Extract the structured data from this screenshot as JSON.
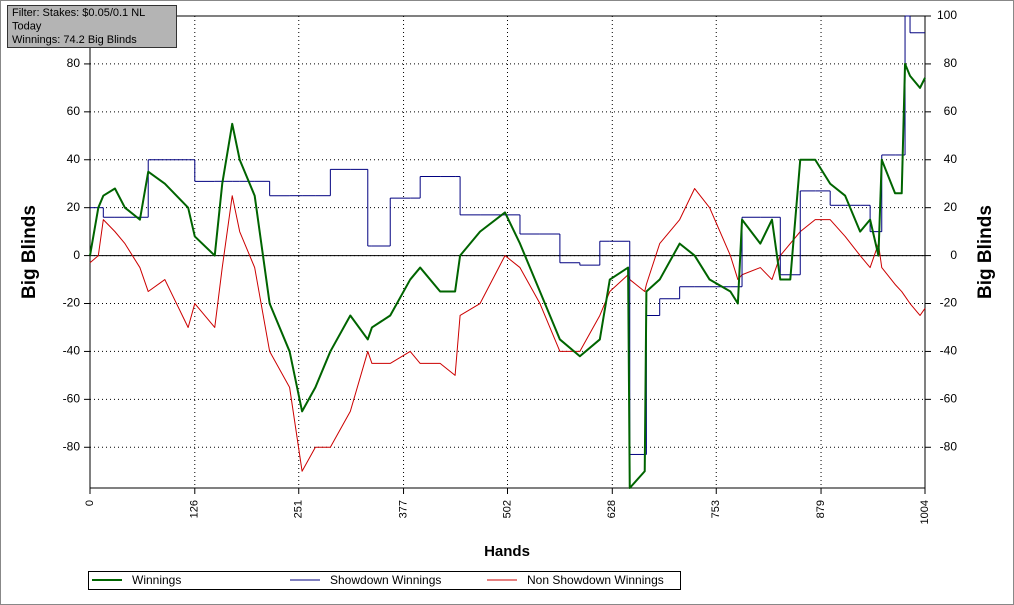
{
  "chart_data": {
    "type": "line",
    "annotations": [
      "Filter: Stakes: $0.05/0.1 NL",
      "Today",
      "Winnings: 74.2 Big Blinds"
    ],
    "xlabel": "Hands",
    "ylabel": "Big Blinds",
    "y2label": "Big Blinds",
    "xlim": [
      0,
      1004
    ],
    "xticks": [
      0,
      126,
      251,
      377,
      502,
      628,
      753,
      879,
      1004
    ],
    "ylim": [
      -97,
      100
    ],
    "yticks": [
      -80,
      -60,
      -40,
      -20,
      0,
      20,
      40,
      60,
      80
    ],
    "y2lim": [
      -97,
      100
    ],
    "y2ticks": [
      -80,
      -60,
      -40,
      -20,
      0,
      20,
      40,
      60,
      80,
      100
    ],
    "grid": true,
    "legend": "bottom",
    "x": [
      0,
      10,
      16,
      30,
      42,
      60,
      70,
      90,
      118,
      126,
      150,
      159,
      171,
      180,
      198,
      216,
      240,
      255,
      271,
      289,
      313,
      334,
      339,
      361,
      385,
      397,
      421,
      439,
      445,
      469,
      499,
      517,
      541,
      565,
      589,
      613,
      625,
      647,
      649,
      667,
      669,
      685,
      709,
      727,
      745,
      770,
      779,
      784,
      806,
      820,
      830,
      842,
      854,
      872,
      890,
      908,
      926,
      938,
      948,
      952,
      968,
      976,
      980,
      986,
      998,
      1004
    ],
    "series": [
      {
        "name": "Winnings",
        "color": "#006400",
        "width": 2,
        "values": [
          0,
          20,
          25,
          28,
          20,
          15,
          35,
          30,
          20,
          8,
          0,
          30,
          55,
          40,
          25,
          -20,
          -40,
          -65,
          -55,
          -40,
          -25,
          -35,
          -30,
          -25,
          -10,
          -5,
          -15,
          -15,
          0,
          10,
          18,
          5,
          -15,
          -35,
          -42,
          -35,
          -10,
          -5,
          -97,
          -90,
          -15,
          -10,
          5,
          0,
          -10,
          -15,
          -20,
          15,
          5,
          15,
          -10,
          -10,
          40,
          40,
          30,
          25,
          10,
          15,
          0,
          40,
          26,
          26,
          80,
          75,
          70,
          74.2
        ]
      },
      {
        "name": "Showdown Winnings",
        "color": "#000080",
        "width": 1,
        "step": true,
        "values": [
          20,
          20,
          16,
          16,
          16,
          16,
          40,
          40,
          40,
          31,
          31,
          31,
          31,
          31,
          31,
          25,
          25,
          25,
          25,
          36,
          36,
          4,
          4,
          24,
          24,
          33,
          33,
          33,
          17,
          17,
          17,
          9,
          9,
          -3,
          -4,
          6,
          6,
          6,
          -83,
          -83,
          -25,
          -18,
          -13,
          -13,
          -13,
          -13,
          -13,
          16,
          16,
          16,
          -8,
          -8,
          27,
          27,
          21,
          21,
          21,
          10,
          10,
          42,
          42,
          42,
          100,
          93,
          93,
          93
        ]
      },
      {
        "name": "Non Showdown Winnings",
        "color": "#cc0000",
        "width": 1,
        "values": [
          -3,
          0,
          15,
          10,
          5,
          -5,
          -15,
          -10,
          -30,
          -20,
          -30,
          -5,
          25,
          10,
          -5,
          -40,
          -55,
          -90,
          -80,
          -80,
          -65,
          -40,
          -45,
          -45,
          -40,
          -45,
          -45,
          -50,
          -25,
          -20,
          0,
          -5,
          -20,
          -40,
          -40,
          -25,
          -15,
          -8,
          -10,
          -15,
          -12,
          5,
          15,
          28,
          20,
          0,
          -10,
          -8,
          -5,
          -10,
          0,
          5,
          10,
          15,
          15,
          8,
          0,
          -5,
          5,
          -5,
          -12,
          -15,
          -17,
          -20,
          -25,
          -22
        ]
      }
    ]
  }
}
